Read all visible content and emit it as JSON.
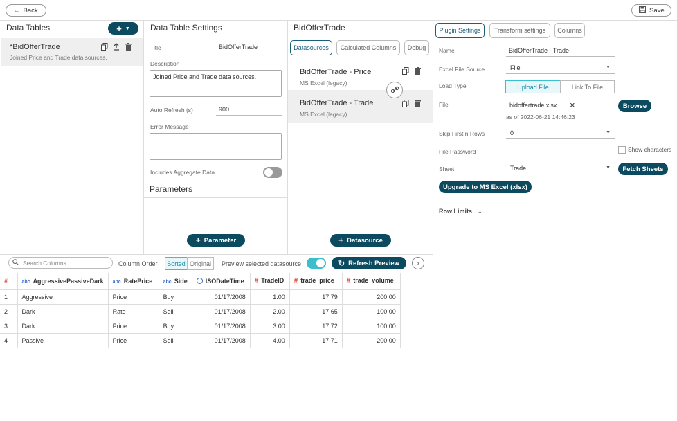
{
  "toolbar": {
    "back_label": "Back",
    "save_label": "Save"
  },
  "data_tables": {
    "title": "Data Tables",
    "item_name": "*BidOfferTrade",
    "item_desc": "Joined Price and Trade data sources."
  },
  "settings": {
    "title": "Data Table Settings",
    "title_label": "Title",
    "title_value": "BidOfferTrade",
    "description_label": "Description",
    "description_value": "Joined Price and Trade data sources.",
    "auto_refresh_label": "Auto Refresh (s)",
    "auto_refresh_value": "900",
    "error_label": "Error Message",
    "aggregate_label": "Includes Aggregate Data",
    "parameters_title": "Parameters",
    "parameter_button": "Parameter"
  },
  "datasources_panel": {
    "title": "BidOfferTrade",
    "tabs": [
      "Datasources",
      "Calculated Columns",
      "Debug"
    ],
    "items": [
      {
        "title": "BidOfferTrade - Price",
        "sub": "MS Excel (legacy)"
      },
      {
        "title": "BidOfferTrade - Trade",
        "sub": "MS Excel (legacy)"
      }
    ],
    "add_button": "Datasource"
  },
  "plugin": {
    "tabs": [
      "Plugin Settings",
      "Transform settings",
      "Columns"
    ],
    "name_label": "Name",
    "name_value": "BidOfferTrade - Trade",
    "source_label": "Excel File Source",
    "source_value": "File",
    "load_type_label": "Load Type",
    "load_options": [
      "Upload File",
      "Link To File"
    ],
    "file_label": "File",
    "file_value": "bidoffertrade.xlsx",
    "file_date": "as of 2022-06-21 14:46:23",
    "browse_label": "Browse",
    "skip_label": "Skip First n Rows",
    "skip_value": "0",
    "password_label": "File Password",
    "show_chars_label": "Show characters",
    "sheet_label": "Sheet",
    "sheet_value": "Trade",
    "fetch_label": "Fetch Sheets",
    "upgrade_label": "Upgrade to MS Excel (xlsx)",
    "row_limits_label": "Row Limits"
  },
  "preview": {
    "search_placeholder": "Search Columns",
    "column_order_label": "Column Order",
    "order_options": [
      "Sorted",
      "Original"
    ],
    "preview_label": "Preview selected datasource",
    "refresh_label": "Refresh Preview",
    "index_header": "#",
    "columns": [
      {
        "name": "AggressivePassiveDark",
        "type": "abc"
      },
      {
        "name": "RatePrice",
        "type": "abc"
      },
      {
        "name": "Side",
        "type": "abc"
      },
      {
        "name": "ISODateTime",
        "type": "clock"
      },
      {
        "name": "TradeID",
        "type": "#"
      },
      {
        "name": "trade_price",
        "type": "#"
      },
      {
        "name": "trade_volume",
        "type": "#"
      }
    ],
    "rows": [
      [
        "1",
        "Aggressive",
        "Price",
        "Buy",
        "01/17/2008",
        "1.00",
        "17.79",
        "200.00"
      ],
      [
        "2",
        "Dark",
        "Rate",
        "Sell",
        "01/17/2008",
        "2.00",
        "17.65",
        "100.00"
      ],
      [
        "3",
        "Dark",
        "Price",
        "Buy",
        "01/17/2008",
        "3.00",
        "17.72",
        "100.00"
      ],
      [
        "4",
        "Passive",
        "Price",
        "Sell",
        "01/17/2008",
        "4.00",
        "17.71",
        "200.00"
      ]
    ]
  },
  "colors": {
    "accent_dark": "#0c4a5f",
    "toggle_on": "#3bbfce",
    "toggle_off": "#999999",
    "hash_red": "#e24b3b",
    "abc_blue": "#3a6fd1"
  }
}
